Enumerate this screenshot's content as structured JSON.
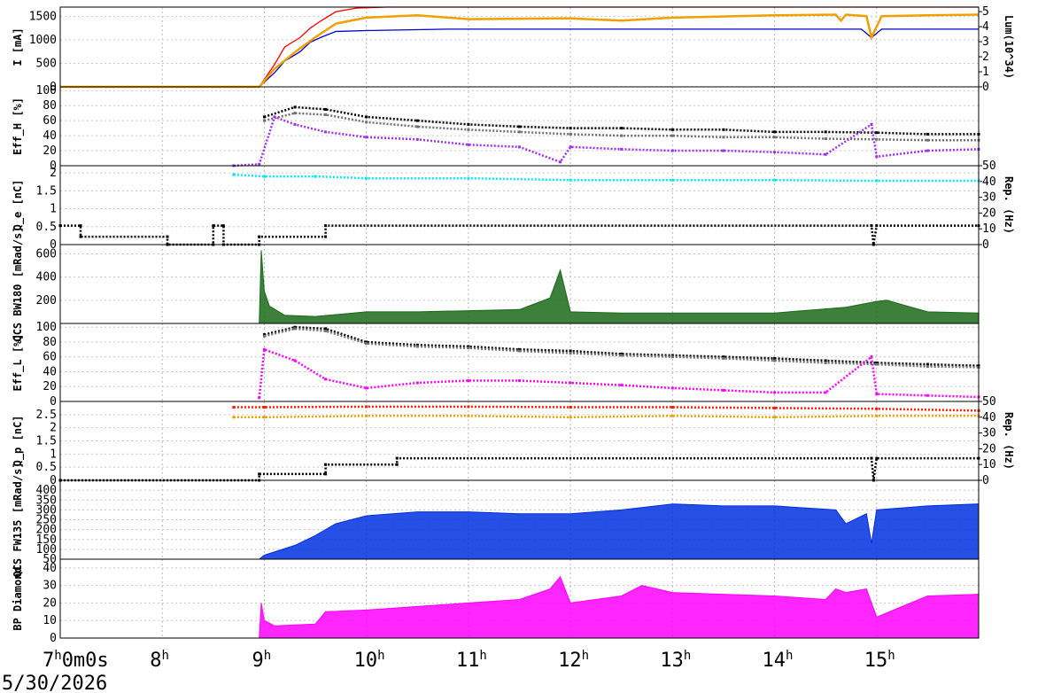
{
  "chart_data": [
    {
      "id": "current",
      "type": "line",
      "ylabel_left": "I [mA]",
      "ylabel_right": "Lum(10^34)",
      "left_ticks": [
        "0",
        "500",
        "1000",
        "1500"
      ],
      "left_ylim": [
        0,
        1700
      ],
      "right_ticks": [
        "0",
        "1",
        "2",
        "3",
        "4",
        "5"
      ],
      "right_ylim": [
        0,
        5.3
      ],
      "series": [
        {
          "color": "#ff0000",
          "axis": "left",
          "x": [
            7.0,
            8.95,
            9.1,
            9.2,
            9.35,
            9.45,
            9.55,
            9.7,
            9.9,
            10.2,
            16.0
          ],
          "y": [
            0,
            0,
            480,
            850,
            1050,
            1250,
            1400,
            1600,
            1680,
            1700,
            1700
          ]
        },
        {
          "color": "#0000cc",
          "axis": "left",
          "x": [
            7.0,
            8.95,
            9.1,
            9.2,
            9.35,
            9.45,
            9.55,
            9.7,
            10.0,
            10.8,
            14.85,
            14.95,
            15.05,
            16.0
          ],
          "y": [
            0,
            0,
            300,
            550,
            750,
            950,
            1050,
            1180,
            1200,
            1230,
            1230,
            1050,
            1230,
            1230
          ]
        },
        {
          "color": "#f0a000",
          "axis": "right",
          "x": [
            7.0,
            8.95,
            9.1,
            9.3,
            9.5,
            9.7,
            10.0,
            10.5,
            11.0,
            12.0,
            12.5,
            13.0,
            14.0,
            14.6,
            14.65,
            14.7,
            14.9,
            14.95,
            15.05,
            15.5,
            16.0
          ],
          "y": [
            0,
            0,
            1.2,
            2.3,
            3.3,
            4.2,
            4.6,
            4.75,
            4.5,
            4.55,
            4.4,
            4.6,
            4.75,
            4.8,
            4.4,
            4.8,
            4.7,
            3.3,
            4.7,
            4.75,
            4.8
          ]
        }
      ]
    },
    {
      "id": "effh",
      "type": "scatter",
      "ylabel_left": "Eff_H [%]",
      "left_ticks": [
        "0",
        "20",
        "40",
        "60",
        "80",
        "100"
      ],
      "left_ylim": [
        0,
        105
      ],
      "series": [
        {
          "color": "#000000",
          "x": [
            9.0,
            9.3,
            9.6,
            10.0,
            10.5,
            11.0,
            11.5,
            12.0,
            12.5,
            13.0,
            13.5,
            14.0,
            14.5,
            15.0,
            15.5,
            16.0
          ],
          "y": [
            65,
            78,
            75,
            65,
            60,
            55,
            52,
            50,
            50,
            48,
            48,
            45,
            45,
            44,
            42,
            42
          ]
        },
        {
          "color": "#707070",
          "x": [
            9.0,
            9.3,
            9.6,
            10.0,
            10.5,
            11.0,
            11.5,
            12.0,
            12.5,
            13.0,
            13.5,
            14.0,
            14.5,
            15.0,
            15.5,
            16.0
          ],
          "y": [
            60,
            70,
            68,
            58,
            52,
            48,
            45,
            42,
            40,
            40,
            38,
            38,
            36,
            35,
            34,
            34
          ]
        },
        {
          "color": "#a030f0",
          "x": [
            8.7,
            8.95,
            9.1,
            9.3,
            9.6,
            10.0,
            10.5,
            11.0,
            11.5,
            11.9,
            12.0,
            12.5,
            13.0,
            13.5,
            14.0,
            14.5,
            14.95,
            15.0,
            15.5,
            16.0
          ],
          "y": [
            0,
            2,
            65,
            55,
            45,
            38,
            35,
            28,
            25,
            5,
            25,
            22,
            20,
            20,
            18,
            15,
            55,
            12,
            20,
            22
          ]
        }
      ]
    },
    {
      "id": "qe",
      "type": "scatter",
      "ylabel_left": "Q_e [nC]",
      "ylabel_right": "Rep. (Hz)",
      "left_ticks": [
        "0",
        "0.5",
        "1",
        "1.5",
        "2"
      ],
      "left_ylim": [
        0,
        2.2
      ],
      "right_ticks": [
        "0",
        "10",
        "20",
        "30",
        "40",
        "50"
      ],
      "right_ylim": [
        0,
        50
      ],
      "series": [
        {
          "color": "#00e8f0",
          "axis": "left",
          "x": [
            8.7,
            9.0,
            9.5,
            10.0,
            11.0,
            12.0,
            13.0,
            14.0,
            15.0,
            16.0
          ],
          "y": [
            1.95,
            1.9,
            1.9,
            1.85,
            1.85,
            1.8,
            1.8,
            1.8,
            1.78,
            1.78
          ]
        },
        {
          "color": "#000000",
          "axis": "right",
          "x": [
            7.0,
            7.2,
            7.2,
            8.05,
            8.05,
            8.5,
            8.5,
            8.6,
            8.6,
            8.95,
            8.95,
            9.6,
            9.6,
            14.95,
            14.97,
            15.0,
            16.0
          ],
          "y": [
            12,
            12,
            5,
            5,
            0,
            0,
            12,
            12,
            0,
            0,
            5,
            5,
            12,
            12,
            0,
            12,
            12
          ]
        }
      ]
    },
    {
      "id": "qcs_bw180",
      "type": "area",
      "ylabel_left": "QCS BW180 [mRad/s]",
      "left_ticks": [
        "200",
        "400",
        "600"
      ],
      "left_ylim": [
        0,
        680
      ],
      "series": [
        {
          "color": "#1a6a1a",
          "x": [
            7.0,
            8.95,
            8.97,
            9.0,
            9.05,
            9.2,
            9.5,
            10.0,
            10.5,
            11.0,
            11.5,
            11.8,
            11.9,
            12.0,
            12.5,
            13.0,
            14.0,
            14.7,
            15.0,
            15.1,
            15.5,
            16.0
          ],
          "y": [
            0,
            0,
            630,
            280,
            150,
            70,
            60,
            100,
            100,
            110,
            120,
            220,
            460,
            100,
            90,
            90,
            90,
            140,
            190,
            200,
            100,
            90
          ]
        }
      ]
    },
    {
      "id": "effl",
      "type": "scatter",
      "ylabel_left": "Eff_L [%]",
      "left_ticks": [
        "0",
        "20",
        "40",
        "60",
        "80",
        "100"
      ],
      "left_ylim": [
        0,
        105
      ],
      "series": [
        {
          "color": "#000000",
          "x": [
            9.0,
            9.3,
            9.6,
            10.0,
            10.5,
            11.0,
            11.5,
            12.0,
            12.5,
            13.0,
            13.5,
            14.0,
            14.5,
            15.0,
            15.5,
            16.0
          ],
          "y": [
            90,
            100,
            98,
            80,
            76,
            74,
            70,
            68,
            64,
            62,
            60,
            58,
            55,
            52,
            50,
            48
          ]
        },
        {
          "color": "#707070",
          "x": [
            9.0,
            9.3,
            9.6,
            10.0,
            10.5,
            11.0,
            11.5,
            12.0,
            12.5,
            13.0,
            13.5,
            14.0,
            14.5,
            15.0,
            15.5,
            16.0
          ],
          "y": [
            88,
            98,
            95,
            78,
            74,
            72,
            68,
            65,
            62,
            60,
            58,
            55,
            52,
            50,
            47,
            46
          ]
        },
        {
          "color": "#ff00ff",
          "x": [
            8.95,
            9.0,
            9.3,
            9.6,
            10.0,
            10.5,
            11.0,
            11.5,
            12.0,
            12.5,
            13.0,
            13.5,
            14.0,
            14.5,
            14.95,
            15.0,
            15.5,
            16.0
          ],
          "y": [
            5,
            70,
            55,
            30,
            18,
            25,
            28,
            28,
            25,
            22,
            18,
            15,
            12,
            12,
            60,
            10,
            8,
            6
          ]
        }
      ]
    },
    {
      "id": "qp",
      "type": "scatter",
      "ylabel_left": "Q_p [nC]",
      "ylabel_right": "Rep. (Hz)",
      "left_ticks": [
        "0",
        "0.5",
        "1",
        "1.5",
        "2",
        "2.5"
      ],
      "left_ylim": [
        0,
        3.0
      ],
      "right_ticks": [
        "0",
        "10",
        "20",
        "30",
        "40",
        "50"
      ],
      "right_ylim": [
        0,
        50
      ],
      "series": [
        {
          "color": "#ff1a00",
          "axis": "left",
          "x": [
            8.7,
            9.0,
            10.0,
            11.0,
            12.0,
            13.0,
            14.0,
            15.0,
            16.0
          ],
          "y": [
            2.78,
            2.78,
            2.8,
            2.8,
            2.78,
            2.78,
            2.75,
            2.72,
            2.65
          ]
        },
        {
          "color": "#f0a000",
          "axis": "left",
          "x": [
            8.7,
            9.0,
            10.0,
            11.0,
            12.0,
            13.0,
            14.0,
            15.0,
            16.0
          ],
          "y": [
            2.4,
            2.4,
            2.45,
            2.45,
            2.4,
            2.45,
            2.4,
            2.45,
            2.45
          ]
        },
        {
          "color": "#000000",
          "axis": "right",
          "x": [
            7.0,
            8.95,
            8.95,
            9.6,
            9.6,
            10.3,
            10.3,
            14.95,
            14.97,
            15.0,
            16.0
          ],
          "y": [
            0,
            0,
            4,
            4,
            10,
            10,
            14,
            14,
            0,
            14,
            14
          ]
        }
      ]
    },
    {
      "id": "qcs_fw135",
      "type": "area",
      "ylabel_left": "QCS FW135 [mRad/s]",
      "left_ticks": [
        "50",
        "100",
        "150",
        "200",
        "250",
        "300",
        "350",
        "400"
      ],
      "left_ylim": [
        50,
        450
      ],
      "series": [
        {
          "color": "#0030e0",
          "x": [
            7.0,
            8.95,
            9.0,
            9.3,
            9.5,
            9.7,
            10.0,
            10.5,
            11.0,
            11.5,
            12.0,
            12.5,
            13.0,
            13.5,
            14.0,
            14.6,
            14.7,
            14.9,
            14.95,
            15.0,
            15.5,
            16.0
          ],
          "y": [
            50,
            50,
            70,
            120,
            170,
            230,
            270,
            290,
            290,
            280,
            280,
            300,
            330,
            320,
            320,
            300,
            230,
            280,
            130,
            300,
            320,
            330
          ]
        }
      ]
    },
    {
      "id": "bp_diamond",
      "type": "area",
      "ylabel_left": "BP Diamond",
      "left_ticks": [
        "0",
        "10",
        "20",
        "30",
        "40"
      ],
      "left_ylim": [
        0,
        45
      ],
      "series": [
        {
          "color": "#ff00ff",
          "x": [
            7.0,
            8.95,
            8.97,
            9.0,
            9.1,
            9.5,
            9.6,
            10.0,
            10.5,
            11.0,
            11.5,
            11.8,
            11.9,
            12.0,
            12.5,
            12.7,
            13.0,
            13.5,
            14.0,
            14.5,
            14.6,
            14.7,
            14.9,
            15.0,
            15.5,
            16.0
          ],
          "y": [
            0,
            0,
            20,
            10,
            7,
            8,
            15,
            16,
            18,
            20,
            22,
            28,
            35,
            20,
            24,
            30,
            26,
            25,
            24,
            22,
            28,
            26,
            28,
            12,
            24,
            25
          ]
        }
      ]
    }
  ],
  "x_axis": {
    "hours": [
      {
        "main": "7",
        "suffix": "h",
        "extra": "0m0s"
      },
      {
        "main": "8",
        "suffix": "h"
      },
      {
        "main": "9",
        "suffix": "h"
      },
      {
        "main": "10",
        "suffix": "h"
      },
      {
        "main": "11",
        "suffix": "h"
      },
      {
        "main": "12",
        "suffix": "h"
      },
      {
        "main": "13",
        "suffix": "h"
      },
      {
        "main": "14",
        "suffix": "h"
      },
      {
        "main": "15",
        "suffix": "h"
      }
    ],
    "xlim": [
      7.0,
      16.0
    ],
    "grid": true
  },
  "date_label": "5/30/2026"
}
